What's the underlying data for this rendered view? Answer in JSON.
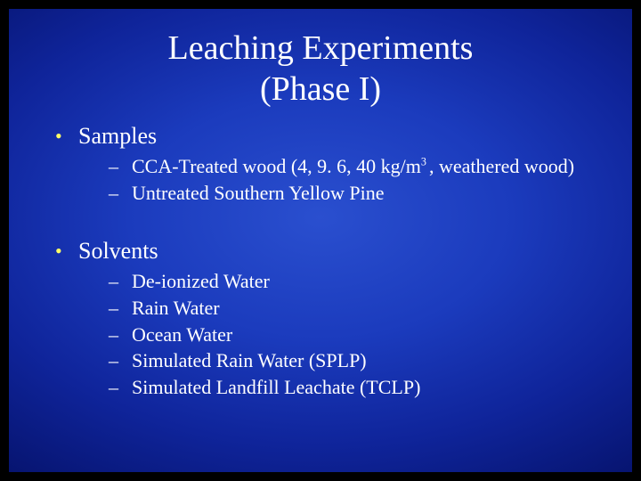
{
  "title_line1": "Leaching Experiments",
  "title_line2": "(Phase I)",
  "bullets": {
    "samples": {
      "label": "Samples",
      "items": [
        "CCA-Treated wood (4, 9. 6, 40 kg/m",
        ", weathered wood)",
        "Untreated Southern Yellow Pine"
      ],
      "sup": "3 "
    },
    "solvents": {
      "label": "Solvents",
      "items": [
        "De-ionized Water",
        "Rain Water",
        "Ocean Water",
        "Simulated Rain Water (SPLP)",
        "Simulated Landfill Leachate (TCLP)"
      ]
    }
  },
  "colors": {
    "bullet_accent": "#ffff66",
    "text": "#ffffff",
    "bg_outer": "#000000"
  },
  "typography": {
    "title_fontsize": 38,
    "l1_fontsize": 26,
    "l2_fontsize": 22,
    "font_family": "Times New Roman"
  }
}
